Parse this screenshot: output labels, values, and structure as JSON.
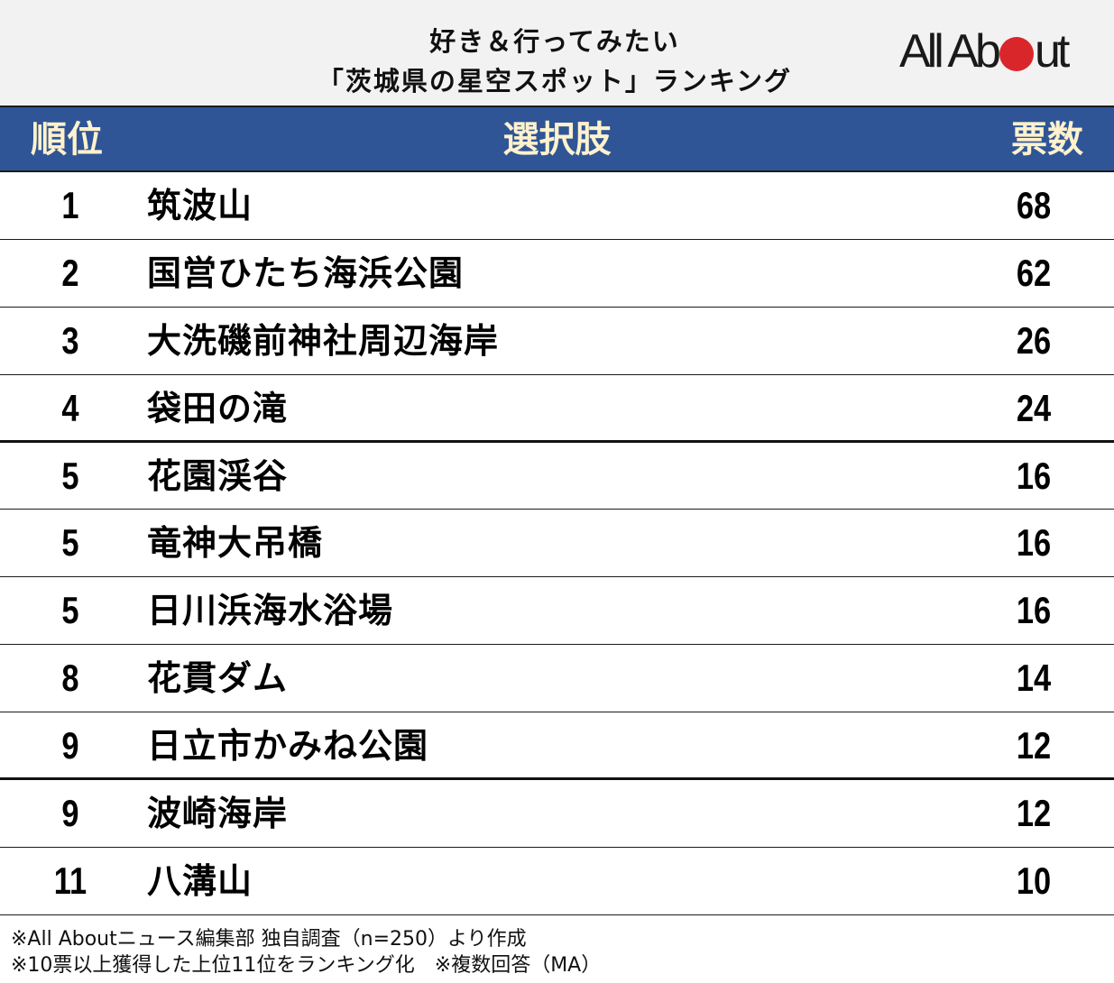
{
  "header": {
    "title_line1": "好き＆行ってみたい",
    "title_line2": "「茨城県の星空スポット」ランキング",
    "logo": {
      "text_before": "All Ab",
      "text_after": "ut",
      "dot_color": "#d9262b"
    }
  },
  "table": {
    "columns": {
      "rank": "順位",
      "choice": "選択肢",
      "votes": "票数"
    },
    "header_bg": "#2f5597",
    "header_text_color": "#fff2cc",
    "rows": [
      {
        "rank": "1",
        "name": "筑波山",
        "votes": "68"
      },
      {
        "rank": "2",
        "name": "国営ひたち海浜公園",
        "votes": "62"
      },
      {
        "rank": "3",
        "name": "大洗磯前神社周辺海岸",
        "votes": "26"
      },
      {
        "rank": "4",
        "name": "袋田の滝",
        "votes": "24"
      },
      {
        "rank": "5",
        "name": "花園渓谷",
        "votes": "16"
      },
      {
        "rank": "5",
        "name": "竜神大吊橋",
        "votes": "16"
      },
      {
        "rank": "5",
        "name": "日川浜海水浴場",
        "votes": "16"
      },
      {
        "rank": "8",
        "name": "花貫ダム",
        "votes": "14"
      },
      {
        "rank": "9",
        "name": "日立市かみね公園",
        "votes": "12"
      },
      {
        "rank": "9",
        "name": "波崎海岸",
        "votes": "12"
      },
      {
        "rank": "11",
        "name": "八溝山",
        "votes": "10"
      }
    ]
  },
  "footer": {
    "note1": "※All Aboutニュース編集部 独自調査（n=250）より作成",
    "note2": "※10票以上獲得した上位11位をランキング化　※複数回答（MA）"
  },
  "chart_data": {
    "type": "table",
    "title": "好き＆行ってみたい「茨城県の星空スポット」ランキング",
    "columns": [
      "順位",
      "選択肢",
      "票数"
    ],
    "categories": [
      "筑波山",
      "国営ひたち海浜公園",
      "大洗磯前神社周辺海岸",
      "袋田の滝",
      "花園渓谷",
      "竜神大吊橋",
      "日川浜海水浴場",
      "花貫ダム",
      "日立市かみね公園",
      "波崎海岸",
      "八溝山"
    ],
    "ranks": [
      1,
      2,
      3,
      4,
      5,
      5,
      5,
      8,
      9,
      9,
      11
    ],
    "values": [
      68,
      62,
      26,
      24,
      16,
      16,
      16,
      14,
      12,
      12,
      10
    ],
    "notes": [
      "※All Aboutニュース編集部 独自調査（n=250）より作成",
      "※10票以上獲得した上位11位をランキング化　※複数回答（MA）"
    ]
  }
}
